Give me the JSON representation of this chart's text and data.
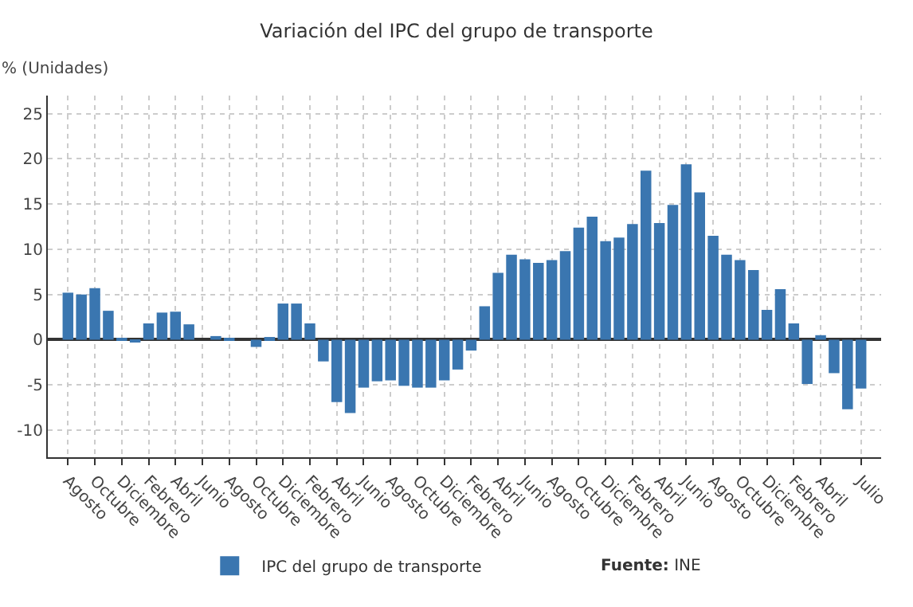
{
  "chart_data": {
    "type": "bar",
    "title": "Variación del IPC del grupo de transporte",
    "ylabel": "% (Unidades)",
    "categories": [
      "Agosto",
      null,
      "Octubre",
      null,
      "Diciembre",
      null,
      "Febrero",
      null,
      "Abril",
      null,
      "Junio",
      null,
      "Agosto",
      null,
      "Octubre",
      null,
      "Diciembre",
      null,
      "Febrero",
      null,
      "Abril",
      null,
      "Junio",
      null,
      "Agosto",
      null,
      "Octubre",
      null,
      "Diciembre",
      null,
      "Febrero",
      null,
      "Abril",
      null,
      "Junio",
      null,
      "Agosto",
      null,
      "Octubre",
      null,
      "Diciembre",
      null,
      "Febrero",
      null,
      "Abril",
      null,
      "Junio",
      null,
      "Agosto",
      null,
      "Octubre",
      null,
      "Diciembre",
      null,
      "Febrero",
      null,
      "Abril",
      null,
      null,
      "Julio"
    ],
    "series": [
      {
        "name": "IPC del grupo de transporte",
        "color": "#3a76b0",
        "values": [
          5.2,
          5.0,
          5.7,
          3.2,
          0.2,
          -0.2,
          1.8,
          3.0,
          3.1,
          1.7,
          0.0,
          0.4,
          0.2,
          0.0,
          -0.8,
          0.3,
          4.0,
          4.0,
          1.8,
          -2.4,
          -6.9,
          -8.1,
          -5.3,
          -4.6,
          -4.5,
          -5.1,
          -5.3,
          -5.3,
          -4.5,
          -3.3,
          -1.2,
          3.7,
          7.4,
          9.4,
          8.9,
          8.5,
          8.8,
          9.8,
          12.4,
          13.6,
          10.9,
          11.3,
          12.8,
          18.7,
          12.9,
          14.9,
          19.4,
          16.3,
          11.5,
          9.4,
          8.8,
          7.7,
          3.3,
          5.6,
          1.8,
          -4.9,
          0.5,
          -3.7,
          -7.7,
          -5.4
        ]
      }
    ],
    "ylim": [
      -13,
      27
    ],
    "yticks": [
      -10,
      -5,
      0,
      5,
      10,
      15,
      20,
      25
    ],
    "grid": true,
    "legend": "bottom",
    "annotations": [
      "Fuente: INE"
    ]
  }
}
